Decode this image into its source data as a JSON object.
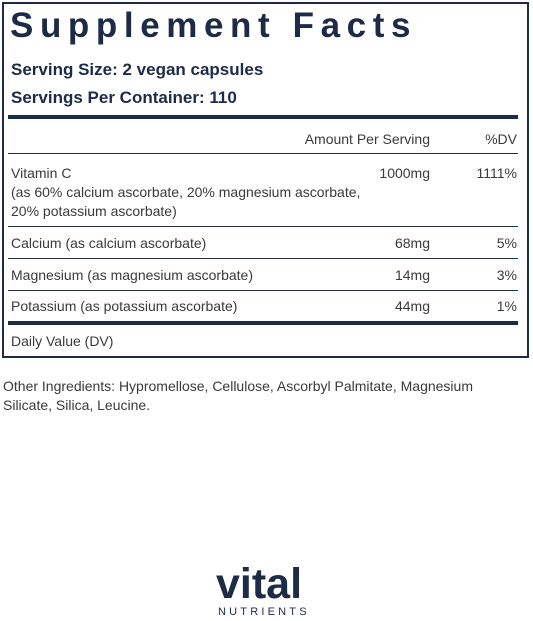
{
  "panel": {
    "title": "Supplement Facts",
    "serving_size": "Serving Size: 2 vegan capsules",
    "servings_per_container": "Servings Per Container: 110",
    "headers": {
      "amount": "Amount Per Serving",
      "dv": "%DV"
    },
    "rows": [
      {
        "name_lines": [
          "Vitamin C",
          "(as 60% calcium ascorbate, 20% magnesium ascorbate,",
          "20% potassium ascorbate)"
        ],
        "amount": "1000mg",
        "dv": "1111%"
      },
      {
        "name_lines": [
          "Calcium (as calcium ascorbate)"
        ],
        "amount": "68mg",
        "dv": "5%"
      },
      {
        "name_lines": [
          "Magnesium (as magnesium ascorbate)"
        ],
        "amount": "14mg",
        "dv": "3%"
      },
      {
        "name_lines": [
          "Potassium (as potassium ascorbate)"
        ],
        "amount": "44mg",
        "dv": "1%"
      }
    ],
    "footnote": "Daily Value (DV)"
  },
  "other_ingredients": "Other Ingredients: Hypromellose, Cellulose, Ascorbyl Palmitate, Magnesium Silicate, Silica, Leucine.",
  "logo": {
    "word": "vital",
    "sub": "NUTRIENTS"
  },
  "colors": {
    "navy": "#1d2b47",
    "text": "#3a3a3a"
  }
}
